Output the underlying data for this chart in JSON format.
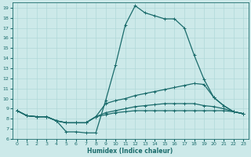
{
  "xlabel": "Humidex (Indice chaleur)",
  "bg_color": "#cce9e9",
  "line_color": "#1a6b6b",
  "grid_color": "#b0d8d8",
  "xlim": [
    -0.5,
    23.5
  ],
  "ylim": [
    6,
    19.5
  ],
  "xticks": [
    0,
    1,
    2,
    3,
    4,
    5,
    6,
    7,
    8,
    9,
    10,
    11,
    12,
    13,
    14,
    15,
    16,
    17,
    18,
    19,
    20,
    21,
    22,
    23
  ],
  "yticks": [
    6,
    7,
    8,
    9,
    10,
    11,
    12,
    13,
    14,
    15,
    16,
    17,
    18,
    19
  ],
  "line1_x": [
    0,
    1,
    2,
    3,
    4,
    5,
    6,
    7,
    8,
    9,
    10,
    11,
    12,
    13,
    14,
    15,
    16,
    17,
    18,
    19,
    20,
    21,
    22,
    23
  ],
  "line1_y": [
    8.8,
    8.3,
    8.2,
    8.2,
    7.8,
    6.7,
    6.7,
    6.6,
    6.6,
    9.8,
    13.3,
    17.3,
    19.2,
    18.5,
    18.2,
    17.9,
    17.9,
    17.0,
    14.3,
    11.9,
    10.1,
    9.3,
    8.7,
    8.5
  ],
  "line2_x": [
    0,
    1,
    2,
    3,
    4,
    5,
    6,
    7,
    8,
    9,
    10,
    11,
    12,
    13,
    14,
    15,
    16,
    17,
    18,
    19,
    20,
    21,
    22,
    23
  ],
  "line2_y": [
    8.8,
    8.3,
    8.2,
    8.2,
    7.8,
    7.6,
    7.6,
    7.6,
    8.2,
    9.5,
    9.8,
    10.0,
    10.3,
    10.5,
    10.7,
    10.9,
    11.1,
    11.3,
    11.5,
    11.4,
    10.1,
    9.3,
    8.7,
    8.5
  ],
  "line3_x": [
    0,
    1,
    2,
    3,
    4,
    5,
    6,
    7,
    8,
    9,
    10,
    11,
    12,
    13,
    14,
    15,
    16,
    17,
    18,
    19,
    20,
    21,
    22,
    23
  ],
  "line3_y": [
    8.8,
    8.3,
    8.2,
    8.2,
    7.8,
    7.6,
    7.6,
    7.6,
    8.2,
    8.6,
    8.8,
    9.0,
    9.2,
    9.3,
    9.4,
    9.5,
    9.5,
    9.5,
    9.5,
    9.3,
    9.2,
    9.0,
    8.7,
    8.5
  ],
  "line4_x": [
    0,
    1,
    2,
    3,
    4,
    5,
    6,
    7,
    8,
    9,
    10,
    11,
    12,
    13,
    14,
    15,
    16,
    17,
    18,
    19,
    20,
    21,
    22,
    23
  ],
  "line4_y": [
    8.8,
    8.3,
    8.2,
    8.2,
    7.8,
    7.6,
    7.6,
    7.6,
    8.2,
    8.4,
    8.6,
    8.7,
    8.8,
    8.8,
    8.8,
    8.8,
    8.8,
    8.8,
    8.8,
    8.8,
    8.8,
    8.8,
    8.7,
    8.5
  ]
}
